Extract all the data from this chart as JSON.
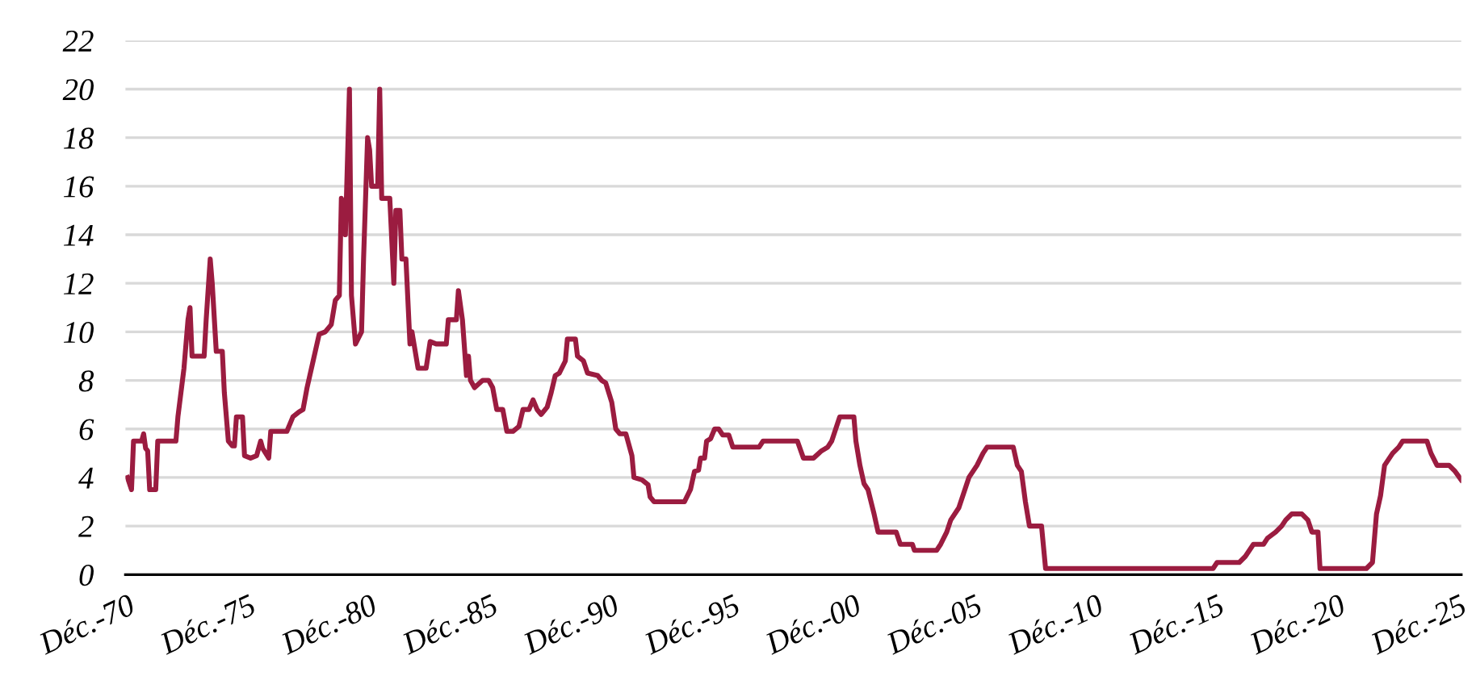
{
  "chart_data": {
    "type": "line",
    "series": [
      {
        "color": "#9b1c40",
        "x": [
          "1970-12",
          "1971-02",
          "1971-03",
          "1971-07",
          "1971-08",
          "1971-09",
          "1971-10",
          "1971-11",
          "1972-02",
          "1972-03",
          "1972-12",
          "1973-01",
          "1973-04",
          "1973-06",
          "1973-07",
          "1973-08",
          "1974-02",
          "1974-03",
          "1974-05",
          "1974-06",
          "1974-08",
          "1974-11",
          "1974-12",
          "1975-02",
          "1975-04",
          "1975-05",
          "1975-06",
          "1975-09",
          "1975-10",
          "1976-01",
          "1976-04",
          "1976-06",
          "1976-07",
          "1976-10",
          "1976-11",
          "1977-07",
          "1977-10",
          "1978-01",
          "1978-03",
          "1978-05",
          "1978-08",
          "1978-11",
          "1979-02",
          "1979-05",
          "1979-07",
          "1979-09",
          "1979-10",
          "1979-11",
          "1979-12",
          "1980-02",
          "1980-03",
          "1980-05",
          "1980-08",
          "1980-09",
          "1980-11",
          "1980-12",
          "1981-01",
          "1981-04",
          "1981-05",
          "1981-06",
          "1981-10",
          "1981-12",
          "1982-01",
          "1982-03",
          "1982-04",
          "1982-06",
          "1982-08",
          "1982-09",
          "1982-12",
          "1983-04",
          "1983-06",
          "1983-09",
          "1984-02",
          "1984-03",
          "1984-07",
          "1984-08",
          "1984-10",
          "1984-12",
          "1985-01",
          "1985-02",
          "1985-04",
          "1985-08",
          "1985-11",
          "1986-01",
          "1986-03",
          "1986-06",
          "1986-08",
          "1986-11",
          "1987-02",
          "1987-04",
          "1987-07",
          "1987-09",
          "1987-11",
          "1988-01",
          "1988-04",
          "1988-06",
          "1988-08",
          "1988-10",
          "1989-01",
          "1989-02",
          "1989-06",
          "1989-07",
          "1989-10",
          "1989-12",
          "1990-05",
          "1990-07",
          "1990-09",
          "1990-12",
          "1991-02",
          "1991-04",
          "1991-07",
          "1991-10",
          "1991-11",
          "1992-03",
          "1992-06",
          "1992-07",
          "1992-09",
          "1993-12",
          "1994-03",
          "1994-05",
          "1994-07",
          "1994-08",
          "1994-10",
          "1994-11",
          "1995-01",
          "1995-03",
          "1995-05",
          "1995-07",
          "1995-10",
          "1995-12",
          "1996-07",
          "1997-01",
          "1997-03",
          "1998-08",
          "1998-11",
          "1999-04",
          "1999-08",
          "1999-11",
          "2000-01",
          "2000-02",
          "2000-05",
          "2000-12",
          "2001-01",
          "2001-03",
          "2001-05",
          "2001-07",
          "2001-10",
          "2001-12",
          "2002-09",
          "2002-11",
          "2003-05",
          "2003-06",
          "2004-05",
          "2004-07",
          "2004-10",
          "2004-12",
          "2005-04",
          "2005-07",
          "2005-09",
          "2006-01",
          "2006-04",
          "2006-06",
          "2007-07",
          "2007-09",
          "2007-11",
          "2008-01",
          "2008-03",
          "2008-09",
          "2008-11",
          "2015-10",
          "2015-12",
          "2016-11",
          "2017-02",
          "2017-06",
          "2017-11",
          "2018-01",
          "2018-05",
          "2018-08",
          "2018-10",
          "2019-01",
          "2019-06",
          "2019-09",
          "2019-11",
          "2020-02",
          "2020-03",
          "2022-02",
          "2022-05",
          "2022-07",
          "2022-09",
          "2022-11",
          "2023-03",
          "2023-06",
          "2023-08",
          "2024-08",
          "2024-10",
          "2025-01",
          "2025-07",
          "2025-10",
          "2026-01"
        ],
        "values": [
          4,
          3.5,
          5.5,
          5.5,
          5.8,
          5.2,
          5.1,
          3.5,
          3.5,
          5.5,
          5.5,
          6.5,
          8.5,
          10.5,
          11,
          9,
          9,
          10.5,
          13,
          12,
          9.2,
          9.2,
          7.5,
          5.5,
          5.3,
          5.3,
          6.5,
          6.5,
          4.9,
          4.8,
          4.9,
          5.5,
          5.2,
          4.8,
          5.9,
          5.9,
          6.5,
          6.7,
          6.8,
          7.7,
          8.8,
          9.9,
          10,
          10.3,
          11.3,
          11.5,
          15.5,
          15.3,
          14,
          20,
          11.5,
          9.5,
          10,
          13,
          18,
          17.5,
          16,
          16,
          20,
          15.5,
          15.5,
          12,
          15,
          15,
          13,
          13,
          9.5,
          10,
          8.5,
          8.5,
          9.6,
          9.5,
          9.5,
          10.5,
          10.5,
          11.7,
          10.5,
          8.2,
          9,
          8,
          7.7,
          8,
          8,
          7.7,
          6.8,
          6.8,
          5.9,
          5.9,
          6.1,
          6.8,
          6.8,
          7.2,
          6.8,
          6.6,
          6.9,
          7.5,
          8.2,
          8.3,
          8.8,
          9.7,
          9.7,
          9,
          8.8,
          8.3,
          8.2,
          8,
          7.9,
          7.1,
          6,
          5.8,
          5.8,
          4.9,
          4,
          3.9,
          3.7,
          3.2,
          3,
          3,
          3.5,
          4.25,
          4.3,
          4.8,
          4.8,
          5.5,
          5.6,
          6,
          6,
          5.75,
          5.75,
          5.25,
          5.25,
          5.25,
          5.5,
          5.5,
          4.8,
          4.8,
          5.1,
          5.25,
          5.5,
          5.75,
          6.5,
          6.5,
          5.5,
          4.5,
          3.75,
          3.5,
          2.5,
          1.75,
          1.75,
          1.25,
          1.25,
          1,
          1,
          1.25,
          1.75,
          2.25,
          2.75,
          3.5,
          4,
          4.5,
          5,
          5.25,
          5.25,
          4.5,
          4.25,
          3,
          2,
          2,
          0.25,
          0.25,
          0.5,
          0.5,
          0.75,
          1.25,
          1.25,
          1.5,
          1.75,
          2,
          2.25,
          2.5,
          2.5,
          2.25,
          1.75,
          1.75,
          0.25,
          0.25,
          0.5,
          2.5,
          3.25,
          4.5,
          5,
          5.25,
          5.5,
          5.5,
          5,
          4.5,
          4.5,
          4.25,
          3.9
        ]
      }
    ],
    "xlim": [
      "1970-11",
      "2026-01"
    ],
    "xticks": [
      {
        "value": "1970-12",
        "label": "Déc.-70"
      },
      {
        "value": "1975-12",
        "label": "Déc.-75"
      },
      {
        "value": "1980-12",
        "label": "Déc.-80"
      },
      {
        "value": "1985-12",
        "label": "Déc.-85"
      },
      {
        "value": "1990-12",
        "label": "Déc.-90"
      },
      {
        "value": "1995-12",
        "label": "Déc.-95"
      },
      {
        "value": "2000-12",
        "label": "Déc.-00"
      },
      {
        "value": "2005-12",
        "label": "Déc.-05"
      },
      {
        "value": "2010-12",
        "label": "Déc.-10"
      },
      {
        "value": "2015-12",
        "label": "Déc.-15"
      },
      {
        "value": "2020-12",
        "label": "Déc.-20"
      },
      {
        "value": "2025-12",
        "label": "Déc.-25"
      }
    ],
    "ylim": [
      0,
      22
    ],
    "yticks": [
      0,
      2,
      4,
      6,
      8,
      10,
      12,
      14,
      16,
      18,
      20,
      22
    ],
    "grid": "y",
    "marker": "none",
    "line_style": "solid"
  }
}
